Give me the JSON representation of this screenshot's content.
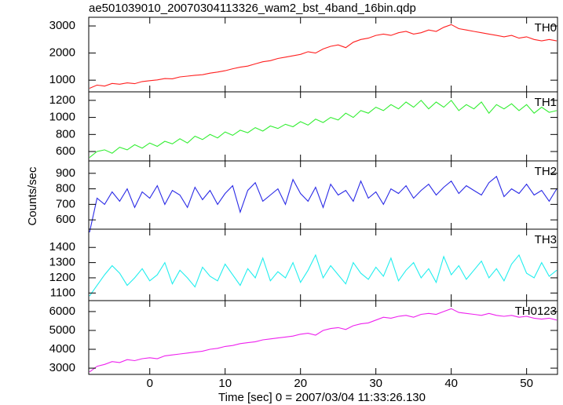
{
  "title": "ae501039010_20070304113326_wam2_bst_4band_16bin.qdp",
  "x_label": "Time [sec] 0 = 2007/03/04 11:33:26.130",
  "y_label": "Counts/sec",
  "chart_data": [
    {
      "type": "line",
      "label": "TH0",
      "color": "#ff2020",
      "xlim": [
        -8.1,
        54.1
      ],
      "xticks": [
        0,
        10,
        20,
        30,
        40,
        50
      ],
      "ylim": [
        570,
        3320
      ],
      "yticks": [
        1000,
        2000,
        3000
      ],
      "x": [
        -8,
        -7,
        -6,
        -5,
        -4,
        -3,
        -2,
        -1,
        0,
        1,
        2,
        3,
        4,
        5,
        6,
        7,
        8,
        9,
        10,
        11,
        12,
        13,
        14,
        15,
        16,
        17,
        18,
        19,
        20,
        21,
        22,
        23,
        24,
        25,
        26,
        27,
        28,
        29,
        30,
        31,
        32,
        33,
        34,
        35,
        36,
        37,
        38,
        39,
        40,
        41,
        42,
        43,
        44,
        45,
        46,
        47,
        48,
        49,
        50,
        51,
        52,
        53,
        54
      ],
      "values": [
        700,
        820,
        780,
        880,
        850,
        900,
        870,
        950,
        980,
        1010,
        1060,
        1050,
        1120,
        1150,
        1180,
        1200,
        1260,
        1300,
        1350,
        1420,
        1480,
        1520,
        1600,
        1680,
        1720,
        1800,
        1850,
        1900,
        1950,
        2050,
        2000,
        2150,
        2250,
        2300,
        2200,
        2400,
        2500,
        2550,
        2650,
        2700,
        2650,
        2750,
        2800,
        2700,
        2750,
        2850,
        2800,
        2950,
        3050,
        2900,
        2850,
        2800,
        2750,
        2700,
        2650,
        2600,
        2650,
        2550,
        2600,
        2500,
        2450,
        2500,
        2450
      ]
    },
    {
      "type": "line",
      "label": "TH1",
      "color": "#33ee33",
      "xlim": [
        -8.1,
        54.1
      ],
      "xticks": [
        0,
        10,
        20,
        30,
        40,
        50
      ],
      "ylim": [
        490,
        1300
      ],
      "yticks": [
        600,
        800,
        1000,
        1200
      ],
      "x": [
        -8,
        -7,
        -6,
        -5,
        -4,
        -3,
        -2,
        -1,
        0,
        1,
        2,
        3,
        4,
        5,
        6,
        7,
        8,
        9,
        10,
        11,
        12,
        13,
        14,
        15,
        16,
        17,
        18,
        19,
        20,
        21,
        22,
        23,
        24,
        25,
        26,
        27,
        28,
        29,
        30,
        31,
        32,
        33,
        34,
        35,
        36,
        37,
        38,
        39,
        40,
        41,
        42,
        43,
        44,
        45,
        46,
        47,
        48,
        49,
        50,
        51,
        52,
        53,
        54
      ],
      "values": [
        530,
        600,
        620,
        580,
        650,
        620,
        680,
        640,
        700,
        660,
        720,
        690,
        750,
        700,
        780,
        740,
        800,
        760,
        830,
        790,
        850,
        820,
        880,
        840,
        900,
        870,
        920,
        890,
        950,
        910,
        980,
        940,
        1000,
        970,
        1050,
        1000,
        1080,
        1050,
        1120,
        1080,
        1150,
        1100,
        1180,
        1120,
        1200,
        1100,
        1180,
        1120,
        1200,
        1080,
        1150,
        1100,
        1180,
        1050,
        1150,
        1100,
        1160,
        1080,
        1150,
        1050,
        1120,
        1060,
        1080
      ]
    },
    {
      "type": "line",
      "label": "TH2",
      "color": "#2a2ae6",
      "xlim": [
        -8.1,
        54.1
      ],
      "xticks": [
        0,
        10,
        20,
        30,
        40,
        50
      ],
      "ylim": [
        540,
        980
      ],
      "yticks": [
        600,
        700,
        800,
        900
      ],
      "x": [
        -8,
        -7,
        -6,
        -5,
        -4,
        -3,
        -2,
        -1,
        0,
        1,
        2,
        3,
        4,
        5,
        6,
        7,
        8,
        9,
        10,
        11,
        12,
        13,
        14,
        15,
        16,
        17,
        18,
        19,
        20,
        21,
        22,
        23,
        24,
        25,
        26,
        27,
        28,
        29,
        30,
        31,
        32,
        33,
        34,
        35,
        36,
        37,
        38,
        39,
        40,
        41,
        42,
        43,
        44,
        45,
        46,
        47,
        48,
        49,
        50,
        51,
        52,
        53,
        54
      ],
      "values": [
        520,
        740,
        700,
        780,
        720,
        800,
        680,
        780,
        740,
        820,
        700,
        790,
        760,
        680,
        810,
        730,
        790,
        700,
        770,
        820,
        650,
        790,
        840,
        720,
        760,
        800,
        700,
        860,
        770,
        720,
        810,
        680,
        830,
        760,
        790,
        720,
        850,
        740,
        780,
        700,
        800,
        770,
        820,
        740,
        790,
        830,
        760,
        810,
        850,
        770,
        820,
        790,
        760,
        840,
        880,
        750,
        800,
        770,
        830,
        760,
        790,
        720,
        800
      ]
    },
    {
      "type": "line",
      "label": "TH3",
      "color": "#22eeee",
      "xlim": [
        -8.1,
        54.1
      ],
      "xticks": [
        0,
        10,
        20,
        30,
        40,
        50
      ],
      "ylim": [
        1050,
        1520
      ],
      "yticks": [
        1100,
        1200,
        1300,
        1400
      ],
      "x": [
        -8,
        -7,
        -6,
        -5,
        -4,
        -3,
        -2,
        -1,
        0,
        1,
        2,
        3,
        4,
        5,
        6,
        7,
        8,
        9,
        10,
        11,
        12,
        13,
        14,
        15,
        16,
        17,
        18,
        19,
        20,
        21,
        22,
        23,
        24,
        25,
        26,
        27,
        28,
        29,
        30,
        31,
        32,
        33,
        34,
        35,
        36,
        37,
        38,
        39,
        40,
        41,
        42,
        43,
        44,
        45,
        46,
        47,
        48,
        49,
        50,
        51,
        52,
        53,
        54
      ],
      "values": [
        1080,
        1150,
        1220,
        1280,
        1230,
        1150,
        1200,
        1260,
        1180,
        1220,
        1300,
        1160,
        1250,
        1200,
        1140,
        1270,
        1210,
        1180,
        1290,
        1220,
        1150,
        1260,
        1200,
        1330,
        1180,
        1240,
        1200,
        1300,
        1170,
        1250,
        1350,
        1200,
        1280,
        1220,
        1160,
        1300,
        1230,
        1190,
        1270,
        1210,
        1330,
        1180,
        1250,
        1300,
        1200,
        1260,
        1170,
        1340,
        1220,
        1280,
        1190,
        1250,
        1310,
        1200,
        1260,
        1180,
        1290,
        1350,
        1230,
        1200,
        1300,
        1210,
        1250
      ]
    },
    {
      "type": "line",
      "label": "TH0123",
      "color": "#ee22ee",
      "xlim": [
        -8.1,
        54.1
      ],
      "xticks": [
        0,
        10,
        20,
        30,
        40,
        50
      ],
      "ylim": [
        2670,
        6580
      ],
      "yticks": [
        3000,
        4000,
        5000,
        6000
      ],
      "x": [
        -8,
        -7,
        -6,
        -5,
        -4,
        -3,
        -2,
        -1,
        0,
        1,
        2,
        3,
        4,
        5,
        6,
        7,
        8,
        9,
        10,
        11,
        12,
        13,
        14,
        15,
        16,
        17,
        18,
        19,
        20,
        21,
        22,
        23,
        24,
        25,
        26,
        27,
        28,
        29,
        30,
        31,
        32,
        33,
        34,
        35,
        36,
        37,
        38,
        39,
        40,
        41,
        42,
        43,
        44,
        45,
        46,
        47,
        48,
        49,
        50,
        51,
        52,
        53,
        54
      ],
      "values": [
        2800,
        3100,
        3200,
        3350,
        3300,
        3450,
        3400,
        3500,
        3550,
        3500,
        3650,
        3700,
        3750,
        3800,
        3850,
        3900,
        4000,
        4050,
        4150,
        4200,
        4300,
        4350,
        4400,
        4500,
        4550,
        4600,
        4650,
        4700,
        4800,
        4850,
        4750,
        5000,
        5100,
        5150,
        5050,
        5250,
        5350,
        5400,
        5550,
        5700,
        5650,
        5750,
        5800,
        5700,
        5850,
        5900,
        5850,
        6000,
        6150,
        5950,
        5900,
        5850,
        5800,
        5900,
        5800,
        5750,
        5800,
        5700,
        5750,
        5650,
        5600,
        5650,
        5550
      ]
    }
  ]
}
